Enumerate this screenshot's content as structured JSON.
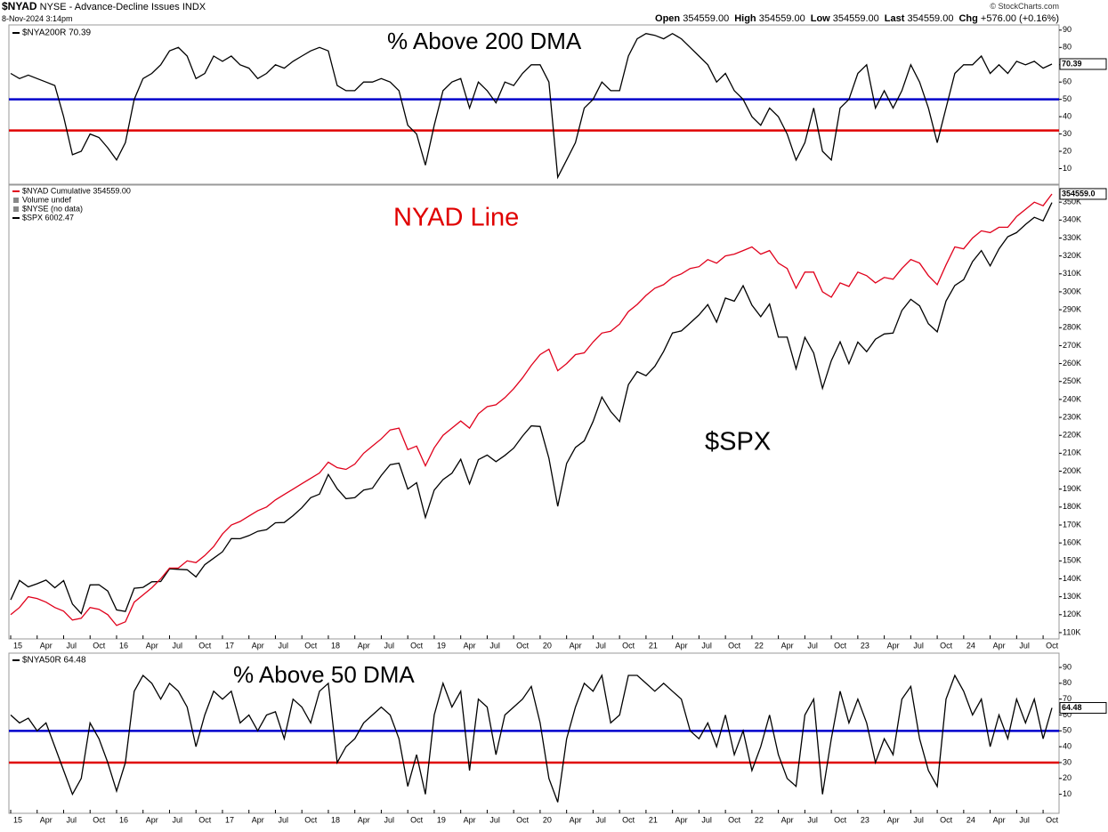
{
  "header": {
    "symbol": "$NYAD",
    "name": "NYSE - Advance-Decline Issues INDX",
    "date": "8-Nov-2024 3:14pm",
    "credit": "© StockCharts.com",
    "quote": [
      [
        "Open",
        "354559.00"
      ],
      [
        "High",
        "354559.00"
      ],
      [
        "Low",
        "354559.00"
      ],
      [
        "Last",
        "354559.00"
      ],
      [
        "Chg",
        "+576.00 (+0.16%)"
      ]
    ]
  },
  "chart_data": [
    {
      "type": "line",
      "title": "% Above 200 DMA",
      "ylim": [
        1,
        93
      ],
      "yticks": [
        10,
        20,
        30,
        40,
        50,
        60,
        70,
        80,
        90
      ],
      "hlines": [
        {
          "value": 50,
          "color": "#0000cc"
        },
        {
          "value": 32,
          "color": "#e00000"
        }
      ],
      "series": [
        {
          "name": "$NYA200R 70.39",
          "color": "#000000",
          "end_label": "70.39",
          "values": [
            65,
            62,
            64,
            62,
            60,
            58,
            40,
            18,
            20,
            30,
            28,
            22,
            15,
            25,
            50,
            62,
            65,
            70,
            78,
            80,
            75,
            62,
            65,
            75,
            72,
            75,
            70,
            68,
            62,
            65,
            70,
            68,
            72,
            75,
            78,
            80,
            78,
            58,
            55,
            55,
            60,
            60,
            62,
            60,
            55,
            35,
            30,
            12,
            35,
            55,
            60,
            62,
            45,
            60,
            55,
            48,
            60,
            58,
            65,
            70,
            70,
            60,
            5,
            15,
            25,
            45,
            50,
            60,
            55,
            55,
            75,
            85,
            88,
            87,
            85,
            88,
            85,
            80,
            75,
            70,
            60,
            65,
            55,
            50,
            40,
            35,
            45,
            40,
            30,
            15,
            25,
            45,
            20,
            15,
            45,
            50,
            65,
            70,
            45,
            55,
            45,
            55,
            70,
            60,
            45,
            25,
            45,
            65,
            70,
            70,
            75,
            65,
            70,
            65,
            72,
            70,
            72,
            68,
            70.39
          ]
        }
      ]
    },
    {
      "type": "line",
      "x": [
        "2015-01",
        "2015-02",
        "2015-03",
        "2015-04",
        "2015-05",
        "2015-06",
        "2015-07",
        "2015-08",
        "2015-09",
        "2015-10",
        "2015-11",
        "2015-12",
        "2016-01",
        "2016-02",
        "2016-03",
        "2016-04",
        "2016-05",
        "2016-06",
        "2016-07",
        "2016-08",
        "2016-09",
        "2016-10",
        "2016-11",
        "2016-12",
        "2017-01",
        "2017-02",
        "2017-03",
        "2017-04",
        "2017-05",
        "2017-06",
        "2017-07",
        "2017-08",
        "2017-09",
        "2017-10",
        "2017-11",
        "2017-12",
        "2018-01",
        "2018-02",
        "2018-03",
        "2018-04",
        "2018-05",
        "2018-06",
        "2018-07",
        "2018-08",
        "2018-09",
        "2018-10",
        "2018-11",
        "2018-12",
        "2019-01",
        "2019-02",
        "2019-03",
        "2019-04",
        "2019-05",
        "2019-06",
        "2019-07",
        "2019-08",
        "2019-09",
        "2019-10",
        "2019-11",
        "2019-12",
        "2020-01",
        "2020-02",
        "2020-03",
        "2020-04",
        "2020-05",
        "2020-06",
        "2020-07",
        "2020-08",
        "2020-09",
        "2020-10",
        "2020-11",
        "2020-12",
        "2021-01",
        "2021-02",
        "2021-03",
        "2021-04",
        "2021-05",
        "2021-06",
        "2021-07",
        "2021-08",
        "2021-09",
        "2021-10",
        "2021-11",
        "2021-12",
        "2022-01",
        "2022-02",
        "2022-03",
        "2022-04",
        "2022-05",
        "2022-06",
        "2022-07",
        "2022-08",
        "2022-09",
        "2022-10",
        "2022-11",
        "2022-12",
        "2023-01",
        "2023-02",
        "2023-03",
        "2023-04",
        "2023-05",
        "2023-06",
        "2023-07",
        "2023-08",
        "2023-09",
        "2023-10",
        "2023-11",
        "2023-12",
        "2024-01",
        "2024-02",
        "2024-03",
        "2024-04",
        "2024-05",
        "2024-06",
        "2024-07",
        "2024-08",
        "2024-09",
        "2024-10",
        "2024-11"
      ],
      "xticks": [
        {
          "value": "2015-01",
          "label": "15"
        },
        {
          "value": "2015-04",
          "label": "Apr"
        },
        {
          "value": "2015-07",
          "label": "Jul"
        },
        {
          "value": "2015-10",
          "label": "Oct"
        },
        {
          "value": "2016-01",
          "label": "16"
        },
        {
          "value": "2016-04",
          "label": "Apr"
        },
        {
          "value": "2016-07",
          "label": "Jul"
        },
        {
          "value": "2016-10",
          "label": "Oct"
        },
        {
          "value": "2017-01",
          "label": "17"
        },
        {
          "value": "2017-04",
          "label": "Apr"
        },
        {
          "value": "2017-07",
          "label": "Jul"
        },
        {
          "value": "2017-10",
          "label": "Oct"
        },
        {
          "value": "2018-01",
          "label": "18"
        },
        {
          "value": "2018-04",
          "label": "Apr"
        },
        {
          "value": "2018-07",
          "label": "Jul"
        },
        {
          "value": "2018-10",
          "label": "Oct"
        },
        {
          "value": "2019-01",
          "label": "19"
        },
        {
          "value": "2019-04",
          "label": "Apr"
        },
        {
          "value": "2019-07",
          "label": "Jul"
        },
        {
          "value": "2019-10",
          "label": "Oct"
        },
        {
          "value": "2020-01",
          "label": "20"
        },
        {
          "value": "2020-04",
          "label": "Apr"
        },
        {
          "value": "2020-07",
          "label": "Jul"
        },
        {
          "value": "2020-10",
          "label": "Oct"
        },
        {
          "value": "2021-01",
          "label": "21"
        },
        {
          "value": "2021-04",
          "label": "Apr"
        },
        {
          "value": "2021-07",
          "label": "Jul"
        },
        {
          "value": "2021-10",
          "label": "Oct"
        },
        {
          "value": "2022-01",
          "label": "22"
        },
        {
          "value": "2022-04",
          "label": "Apr"
        },
        {
          "value": "2022-07",
          "label": "Jul"
        },
        {
          "value": "2022-10",
          "label": "Oct"
        },
        {
          "value": "2023-01",
          "label": "23"
        },
        {
          "value": "2023-04",
          "label": "Apr"
        },
        {
          "value": "2023-07",
          "label": "Jul"
        },
        {
          "value": "2023-10",
          "label": "Oct"
        },
        {
          "value": "2024-01",
          "label": "24"
        },
        {
          "value": "2024-04",
          "label": "Apr"
        },
        {
          "value": "2024-07",
          "label": "Jul"
        },
        {
          "value": "2024-10",
          "label": "Oct"
        }
      ],
      "ylim": [
        106500,
        359500
      ],
      "yticks": [
        {
          "value": 110000,
          "label": "110K"
        },
        {
          "value": 120000,
          "label": "120K"
        },
        {
          "value": 130000,
          "label": "130K"
        },
        {
          "value": 140000,
          "label": "140K"
        },
        {
          "value": 150000,
          "label": "150K"
        },
        {
          "value": 160000,
          "label": "160K"
        },
        {
          "value": 170000,
          "label": "170K"
        },
        {
          "value": 180000,
          "label": "180K"
        },
        {
          "value": 190000,
          "label": "190K"
        },
        {
          "value": 200000,
          "label": "200K"
        },
        {
          "value": 210000,
          "label": "210K"
        },
        {
          "value": 220000,
          "label": "220K"
        },
        {
          "value": 230000,
          "label": "230K"
        },
        {
          "value": 240000,
          "label": "240K"
        },
        {
          "value": 250000,
          "label": "250K"
        },
        {
          "value": 260000,
          "label": "260K"
        },
        {
          "value": 270000,
          "label": "270K"
        },
        {
          "value": 280000,
          "label": "280K"
        },
        {
          "value": 290000,
          "label": "290K"
        },
        {
          "value": 300000,
          "label": "300K"
        },
        {
          "value": 310000,
          "label": "310K"
        },
        {
          "value": 320000,
          "label": "320K"
        },
        {
          "value": 330000,
          "label": "330K"
        },
        {
          "value": 340000,
          "label": "340K"
        },
        {
          "value": 350000,
          "label": "350K"
        }
      ],
      "y2lim": [
        1790,
        6300
      ],
      "y2log": true,
      "annotations": [
        {
          "text": "NYAD Line",
          "color": "#e00000"
        },
        {
          "text": "$SPX",
          "color": "#000000"
        }
      ],
      "legend_extra": [
        "Volume undef",
        "$NYSE (no data)"
      ],
      "series": [
        {
          "name": "$NYAD Cumulative 354559.00",
          "color": "#e0001b",
          "end_label": "354559.0",
          "values": [
            120000,
            124000,
            130000,
            129000,
            127000,
            124000,
            122000,
            117000,
            118000,
            124000,
            123000,
            120000,
            114000,
            116000,
            127000,
            131000,
            135000,
            140000,
            146000,
            146000,
            150000,
            149000,
            153000,
            158000,
            165000,
            170000,
            172000,
            175000,
            178000,
            180000,
            184000,
            187000,
            190000,
            193000,
            196000,
            199000,
            205000,
            202000,
            201000,
            204000,
            210000,
            214000,
            218000,
            223000,
            224000,
            212000,
            214000,
            203000,
            213000,
            220000,
            224000,
            228000,
            224000,
            232000,
            236000,
            237000,
            241000,
            246000,
            252000,
            259000,
            265000,
            268000,
            256000,
            260000,
            265000,
            266000,
            272000,
            277000,
            278000,
            282000,
            289000,
            293000,
            298000,
            302000,
            304000,
            308000,
            310000,
            313000,
            314000,
            318000,
            316000,
            320000,
            321000,
            323000,
            325000,
            321000,
            323000,
            316000,
            313000,
            302000,
            311000,
            311000,
            300000,
            297000,
            305000,
            303000,
            311000,
            309000,
            305000,
            308000,
            307000,
            313000,
            318000,
            316000,
            309000,
            304000,
            315000,
            325000,
            324000,
            330000,
            334000,
            333000,
            336000,
            336000,
            342000,
            346000,
            350000,
            348000,
            354559
          ]
        },
        {
          "name": "$SPX 6002.47",
          "color": "#000000",
          "axis": "y2",
          "values": [
            1995,
            2105,
            2068,
            2086,
            2107,
            2063,
            2104,
            1972,
            1920,
            2079,
            2080,
            2044,
            1940,
            1932,
            2060,
            2065,
            2097,
            2099,
            2174,
            2171,
            2168,
            2126,
            2199,
            2239,
            2279,
            2364,
            2363,
            2384,
            2412,
            2423,
            2470,
            2472,
            2519,
            2575,
            2648,
            2674,
            2824,
            2714,
            2641,
            2648,
            2705,
            2718,
            2816,
            2902,
            2914,
            2712,
            2760,
            2507,
            2704,
            2784,
            2834,
            2946,
            2752,
            2942,
            2980,
            2926,
            2977,
            3038,
            3141,
            3231,
            3226,
            2954,
            2585,
            2912,
            3044,
            3100,
            3271,
            3500,
            3363,
            3270,
            3622,
            3756,
            3714,
            3811,
            3973,
            4181,
            4204,
            4298,
            4395,
            4523,
            4308,
            4605,
            4567,
            4766,
            4516,
            4374,
            4530,
            4132,
            4132,
            3785,
            4130,
            3955,
            3586,
            3872,
            4080,
            3840,
            4077,
            3970,
            4109,
            4169,
            4180,
            4450,
            4589,
            4508,
            4288,
            4194,
            4568,
            4770,
            4846,
            5096,
            5254,
            5036,
            5278,
            5460,
            5522,
            5648,
            5762,
            5705,
            6002.47
          ]
        }
      ]
    },
    {
      "type": "line",
      "title": "% Above 50 DMA",
      "ylim": [
        -2,
        99
      ],
      "yticks": [
        10,
        20,
        30,
        40,
        50,
        60,
        70,
        80,
        90
      ],
      "hlines": [
        {
          "value": 50,
          "color": "#0000cc"
        },
        {
          "value": 30,
          "color": "#e00000"
        }
      ],
      "series": [
        {
          "name": "$NYA50R 64.48",
          "color": "#000000",
          "end_label": "64.48",
          "values": [
            60,
            55,
            58,
            50,
            55,
            40,
            25,
            10,
            20,
            55,
            45,
            30,
            12,
            30,
            75,
            85,
            80,
            70,
            80,
            75,
            65,
            40,
            60,
            75,
            70,
            75,
            55,
            60,
            50,
            60,
            62,
            45,
            70,
            65,
            55,
            75,
            80,
            30,
            40,
            45,
            55,
            60,
            65,
            60,
            45,
            15,
            35,
            10,
            60,
            80,
            65,
            75,
            25,
            70,
            65,
            35,
            60,
            65,
            70,
            78,
            55,
            20,
            5,
            45,
            65,
            80,
            75,
            85,
            55,
            60,
            85,
            85,
            80,
            75,
            80,
            75,
            70,
            50,
            45,
            55,
            40,
            60,
            35,
            50,
            25,
            40,
            60,
            35,
            20,
            15,
            60,
            70,
            10,
            45,
            75,
            55,
            70,
            55,
            30,
            45,
            35,
            70,
            78,
            45,
            25,
            15,
            70,
            85,
            75,
            60,
            70,
            40,
            60,
            45,
            70,
            55,
            70,
            45,
            64.48
          ]
        }
      ]
    }
  ]
}
